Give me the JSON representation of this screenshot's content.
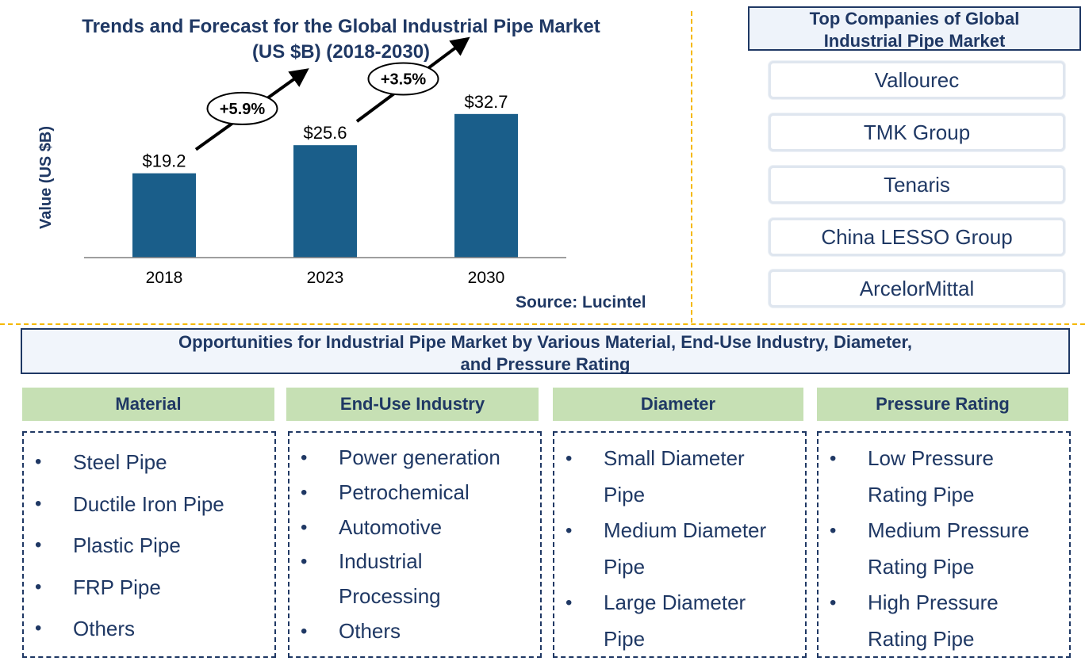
{
  "chart_data": {
    "type": "bar",
    "title": "Trends and Forecast for the Global Industrial Pipe Market (US $B) (2018-2030)",
    "title_lines": [
      "Trends and Forecast for the Global Industrial Pipe Market",
      "(US $B) (2018-2030)"
    ],
    "ylabel": "Value (US $B)",
    "xlabel": "",
    "categories": [
      "2018",
      "2023",
      "2030"
    ],
    "values": [
      19.2,
      25.6,
      32.7
    ],
    "value_labels": [
      "$19.2",
      "$25.6",
      "$32.7"
    ],
    "growth_labels": [
      "+5.9%",
      "+3.5%"
    ],
    "ylim": [
      0,
      37
    ],
    "bar_color": "#1a5e8a",
    "grid": false,
    "source": "Source: Lucintel"
  },
  "companies": {
    "title_lines": [
      "Top Companies of Global",
      "Industrial Pipe Market"
    ],
    "items": [
      "Vallourec",
      "TMK Group",
      "Tenaris",
      "China LESSO Group",
      "ArcelorMittal"
    ]
  },
  "opportunities": {
    "title_lines": [
      "Opportunities for Industrial Pipe Market by Various Material, End-Use Industry, Diameter,",
      "and Pressure Rating"
    ],
    "categories": [
      {
        "name": "Material",
        "items": [
          "Steel Pipe",
          "Ductile Iron Pipe",
          "Plastic Pipe",
          "FRP Pipe",
          "Others"
        ]
      },
      {
        "name": "End-Use Industry",
        "items": [
          "Power generation",
          "Petrochemical",
          "Automotive",
          "Industrial Processing",
          "Others"
        ]
      },
      {
        "name": "Diameter",
        "items": [
          "Small Diameter Pipe",
          "Medium Diameter Pipe",
          "Large Diameter Pipe"
        ]
      },
      {
        "name": "Pressure Rating",
        "items": [
          "Low Pressure Rating Pipe",
          "Medium Pressure Rating Pipe",
          "High Pressure Rating Pipe"
        ]
      }
    ]
  },
  "colors": {
    "navy": "#1f3864",
    "bar": "#1a5e8a",
    "category_header": "#c6e0b4",
    "separator": "#f5b800"
  }
}
